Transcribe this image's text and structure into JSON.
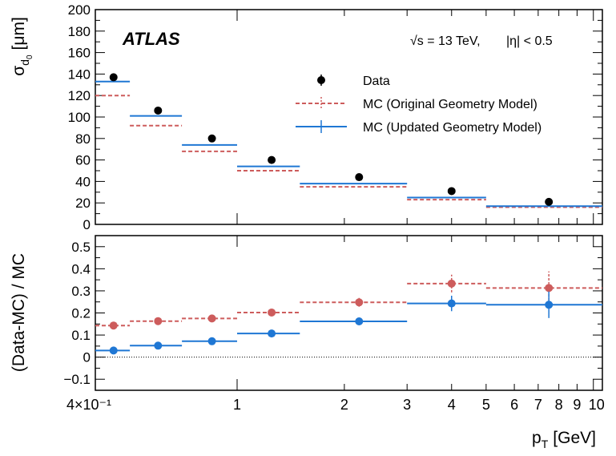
{
  "chart_data": {
    "type": "scatter",
    "experiment": "ATLAS",
    "energy_label": "√s = 13 TeV,",
    "eta_label": "|η| < 0.5",
    "xlabel_main": "p",
    "xlabel_sub": "T",
    "xlabel_unit": "[GeV]",
    "x_scale": "log",
    "xlim": [
      0.4,
      10.6
    ],
    "x_ticks": [
      {
        "value": 0.4,
        "label": "4×10⁻¹"
      },
      {
        "value": 1,
        "label": "1"
      },
      {
        "value": 2,
        "label": "2"
      },
      {
        "value": 3,
        "label": "3"
      },
      {
        "value": 4,
        "label": "4"
      },
      {
        "value": 5,
        "label": "5"
      },
      {
        "value": 6,
        "label": "6"
      },
      {
        "value": 7,
        "label": "7"
      },
      {
        "value": 8,
        "label": "8"
      },
      {
        "value": 9,
        "label": "9"
      },
      {
        "value": 10,
        "label": "10"
      }
    ],
    "bin_edges": [
      0.4,
      0.5,
      0.7,
      1.0,
      1.5,
      3.0,
      5.0,
      10.6
    ],
    "bin_centers": [
      0.45,
      0.6,
      0.85,
      1.25,
      2.2,
      4.0,
      7.5
    ],
    "top_panel": {
      "ylabel_main": "σ",
      "ylabel_sub": "d",
      "ylabel_subsub": "0",
      "ylabel_unit": "[μm]",
      "ylim": [
        0,
        200
      ],
      "y_ticks": [
        0,
        20,
        40,
        60,
        80,
        100,
        120,
        140,
        160,
        180,
        200
      ],
      "legend_position": "top-right",
      "legend": [
        {
          "label": "Data",
          "color": "#000000",
          "style": "marker"
        },
        {
          "label": "MC (Original Geometry Model)",
          "color": "#cd5c5c",
          "style": "dashed"
        },
        {
          "label": "MC (Updated Geometry Model)",
          "color": "#1f77d4",
          "style": "solid"
        }
      ],
      "data": [
        137,
        106,
        80,
        60,
        44,
        31,
        21
      ],
      "mc_original": [
        120,
        92,
        68,
        50,
        35,
        23,
        16
      ],
      "mc_updated": [
        133,
        101,
        74,
        54,
        38,
        25,
        17
      ]
    },
    "bottom_panel": {
      "ylabel": "(Data-MC) / MC",
      "ylim": [
        -0.15,
        0.55
      ],
      "y_ticks": [
        {
          "value": -0.1,
          "label": "−0.1"
        },
        {
          "value": 0,
          "label": "0"
        },
        {
          "value": 0.1,
          "label": "0.1"
        },
        {
          "value": 0.2,
          "label": "0.2"
        },
        {
          "value": 0.3,
          "label": "0.3"
        },
        {
          "value": 0.4,
          "label": "0.4"
        },
        {
          "value": 0.5,
          "label": "0.5"
        }
      ],
      "reference_line": 0,
      "ratio_original": [
        0.143,
        0.163,
        0.175,
        0.202,
        0.248,
        0.333,
        0.313
      ],
      "ratio_original_err": [
        0.006,
        0.007,
        0.008,
        0.01,
        0.02,
        0.04,
        0.075
      ],
      "ratio_updated": [
        0.03,
        0.052,
        0.072,
        0.107,
        0.162,
        0.243,
        0.237
      ],
      "ratio_updated_err": [
        0.005,
        0.006,
        0.007,
        0.008,
        0.012,
        0.035,
        0.06
      ]
    }
  }
}
